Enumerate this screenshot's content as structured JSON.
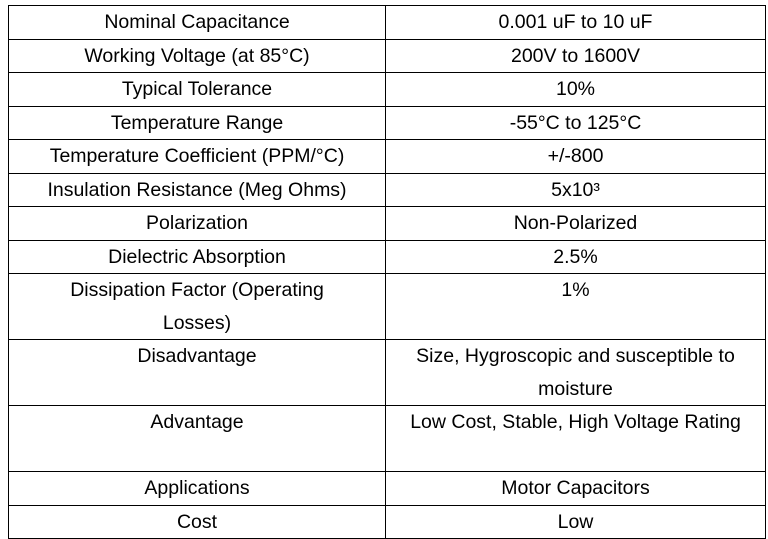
{
  "table": {
    "rows": [
      [
        "Nominal Capacitance",
        "0.001 uF to 10 uF"
      ],
      [
        "Working Voltage (at 85°C)",
        "200V to 1600V"
      ],
      [
        "Typical Tolerance",
        "10%"
      ],
      [
        "Temperature Range",
        "-55°C to 125°C"
      ],
      [
        "Temperature Coefficient (PPM/°C)",
        "+/-800"
      ],
      [
        "Insulation Resistance (Meg Ohms)",
        "5x10³"
      ],
      [
        "Polarization",
        "Non-Polarized"
      ],
      [
        "Dielectric Absorption",
        "2.5%"
      ],
      [
        "Dissipation Factor (Operating Losses)",
        "1%"
      ],
      [
        "Disadvantage",
        "Size, Hygroscopic and susceptible to moisture"
      ],
      [
        "Advantage",
        "Low Cost, Stable, High Voltage Rating"
      ],
      [
        "Applications",
        "Motor Capacitors"
      ],
      [
        "Cost",
        "Low"
      ]
    ]
  }
}
